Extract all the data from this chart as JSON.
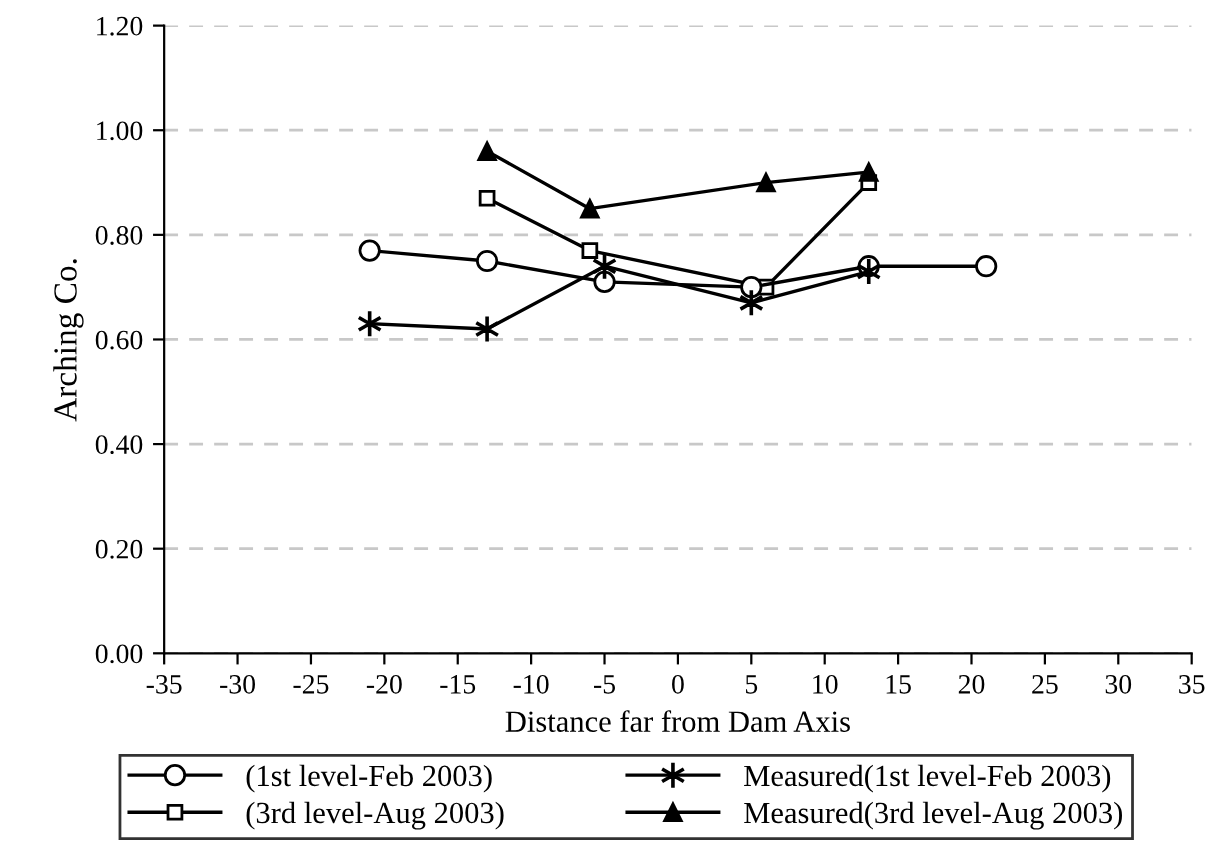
{
  "chart_data": {
    "type": "line",
    "xlabel": "Distance far from Dam Axis",
    "ylabel": "Arching Co.",
    "xlim": [
      -35,
      35
    ],
    "xticks": [
      -35,
      -30,
      -25,
      -20,
      -15,
      -10,
      -5,
      0,
      5,
      10,
      15,
      20,
      25,
      30,
      35
    ],
    "ylim": [
      0,
      1.2
    ],
    "yticks": [
      {
        "value": 0,
        "label": "0.00"
      },
      {
        "value": 0.2,
        "label": "0.20"
      },
      {
        "value": 0.4,
        "label": "0.40"
      },
      {
        "value": 0.6,
        "label": "0.60"
      },
      {
        "value": 0.8,
        "label": "0.80"
      },
      {
        "value": 1.0,
        "label": "1.00"
      },
      {
        "value": 1.2,
        "label": "1.20"
      }
    ],
    "grid": "y",
    "legend": "bottom",
    "line_style": "solid",
    "series": [
      {
        "name": "(1st level-Feb 2003)",
        "color": "#000000",
        "marker": "circle",
        "x": [
          -21,
          -13,
          -5,
          5,
          13,
          21
        ],
        "values": [
          0.77,
          0.75,
          0.71,
          0.7,
          0.74,
          0.74
        ]
      },
      {
        "name": "Measured(1st level-Feb 2003)",
        "color": "#000000",
        "marker": "cross",
        "x": [
          -21,
          -13,
          -5,
          5,
          13
        ],
        "values": [
          0.63,
          0.62,
          0.74,
          0.67,
          0.73
        ]
      },
      {
        "name": "(3rd level-Aug 2003)",
        "color": "#000000",
        "marker": "square",
        "x": [
          -13,
          -6,
          6,
          13
        ],
        "values": [
          0.87,
          0.77,
          0.7,
          0.9
        ]
      },
      {
        "name": "Measured(3rd level-Aug 2003)",
        "color": "#000000",
        "marker": "triangle",
        "x": [
          -13,
          -6,
          6,
          13
        ],
        "values": [
          0.96,
          0.85,
          0.9,
          0.92
        ]
      }
    ]
  }
}
